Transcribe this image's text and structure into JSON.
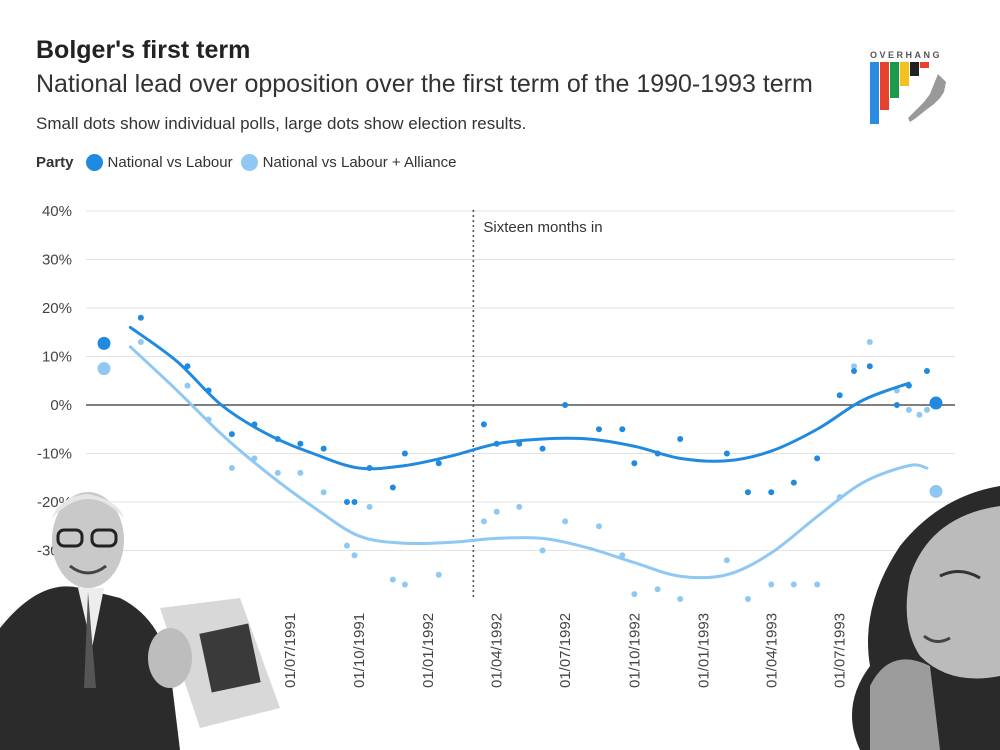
{
  "header": {
    "title": "Bolger's first term",
    "subtitle": "National lead over opposition over the first term of the 1990-1993 term",
    "note": "Small dots show individual polls, large dots show election results."
  },
  "legend": {
    "title": "Party",
    "items": [
      {
        "label": "National vs Labour",
        "color": "#1f8ae0"
      },
      {
        "label": "National vs Labour + Alliance",
        "color": "#8fc8f2"
      }
    ]
  },
  "logo": {
    "text": "OVERHANG"
  },
  "chart_data": {
    "type": "scatter",
    "ylim": [
      -40,
      40
    ],
    "yticks": [
      "40%",
      "30%",
      "20%",
      "10%",
      "0%",
      "-10%",
      "-20%",
      "-30%"
    ],
    "xlim": [
      "1990-10-27",
      "1993-11-06"
    ],
    "xticks": [
      "01/07/1991",
      "01/10/1991",
      "01/01/1992",
      "01/04/1992",
      "01/07/1992",
      "01/10/1992",
      "01/01/1993",
      "01/04/1993",
      "01/07/1993"
    ],
    "annotation": {
      "label": "Sixteen months in",
      "date": "1992-03-01"
    },
    "series": [
      {
        "name": "National vs Labour",
        "color": "#1f8ae0",
        "election_results": [
          {
            "date": "1990-10-27",
            "value": 12.7
          },
          {
            "date": "1993-11-06",
            "value": 0.4
          }
        ],
        "polls": [
          {
            "date": "1990-12-15",
            "value": 18
          },
          {
            "date": "1991-02-15",
            "value": 8
          },
          {
            "date": "1991-03-15",
            "value": 3
          },
          {
            "date": "1991-04-15",
            "value": -6
          },
          {
            "date": "1991-05-15",
            "value": -4
          },
          {
            "date": "1991-06-15",
            "value": -7
          },
          {
            "date": "1991-07-15",
            "value": -8
          },
          {
            "date": "1991-08-15",
            "value": -9
          },
          {
            "date": "1991-09-15",
            "value": -20
          },
          {
            "date": "1991-09-25",
            "value": -20
          },
          {
            "date": "1991-10-15",
            "value": -13
          },
          {
            "date": "1991-11-15",
            "value": -17
          },
          {
            "date": "1991-12-01",
            "value": -10
          },
          {
            "date": "1992-01-15",
            "value": -12
          },
          {
            "date": "1992-03-15",
            "value": -4
          },
          {
            "date": "1992-04-01",
            "value": -8
          },
          {
            "date": "1992-05-01",
            "value": -8
          },
          {
            "date": "1992-06-01",
            "value": -9
          },
          {
            "date": "1992-07-01",
            "value": 0
          },
          {
            "date": "1992-08-15",
            "value": -5
          },
          {
            "date": "1992-09-15",
            "value": -5
          },
          {
            "date": "1992-10-01",
            "value": -12
          },
          {
            "date": "1992-11-01",
            "value": -10
          },
          {
            "date": "1992-12-01",
            "value": -7
          },
          {
            "date": "1993-02-01",
            "value": -10
          },
          {
            "date": "1993-03-01",
            "value": -18
          },
          {
            "date": "1993-04-01",
            "value": -18
          },
          {
            "date": "1993-05-01",
            "value": -16
          },
          {
            "date": "1993-06-01",
            "value": -11
          },
          {
            "date": "1993-07-01",
            "value": 2
          },
          {
            "date": "1993-07-20",
            "value": 7
          },
          {
            "date": "1993-08-10",
            "value": 8
          },
          {
            "date": "1993-09-15",
            "value": 0
          },
          {
            "date": "1993-10-01",
            "value": 4
          },
          {
            "date": "1993-10-25",
            "value": 7
          }
        ],
        "trend": [
          {
            "date": "1990-12-01",
            "value": 16
          },
          {
            "date": "1991-02-01",
            "value": 9
          },
          {
            "date": "1991-04-01",
            "value": 0
          },
          {
            "date": "1991-06-01",
            "value": -6
          },
          {
            "date": "1991-08-01",
            "value": -10
          },
          {
            "date": "1991-10-01",
            "value": -13
          },
          {
            "date": "1991-12-01",
            "value": -12.5
          },
          {
            "date": "1992-02-01",
            "value": -10.5
          },
          {
            "date": "1992-04-01",
            "value": -8
          },
          {
            "date": "1992-06-01",
            "value": -7
          },
          {
            "date": "1992-08-01",
            "value": -7
          },
          {
            "date": "1992-10-01",
            "value": -8.5
          },
          {
            "date": "1992-12-01",
            "value": -11
          },
          {
            "date": "1993-02-01",
            "value": -11.5
          },
          {
            "date": "1993-04-01",
            "value": -9.5
          },
          {
            "date": "1993-06-01",
            "value": -5
          },
          {
            "date": "1993-08-01",
            "value": 1
          },
          {
            "date": "1993-10-01",
            "value": 4.5
          }
        ]
      },
      {
        "name": "National vs Labour + Alliance",
        "color": "#8fc8f2",
        "election_results": [
          {
            "date": "1990-10-27",
            "value": 7.5
          },
          {
            "date": "1993-11-06",
            "value": -17.8
          }
        ],
        "polls": [
          {
            "date": "1990-12-15",
            "value": 13
          },
          {
            "date": "1991-02-15",
            "value": 4
          },
          {
            "date": "1991-03-15",
            "value": -3
          },
          {
            "date": "1991-04-15",
            "value": -13
          },
          {
            "date": "1991-05-15",
            "value": -11
          },
          {
            "date": "1991-06-15",
            "value": -14
          },
          {
            "date": "1991-07-15",
            "value": -14
          },
          {
            "date": "1991-08-15",
            "value": -18
          },
          {
            "date": "1991-09-15",
            "value": -29
          },
          {
            "date": "1991-09-25",
            "value": -31
          },
          {
            "date": "1991-10-15",
            "value": -21
          },
          {
            "date": "1991-11-15",
            "value": -36
          },
          {
            "date": "1991-12-01",
            "value": -37
          },
          {
            "date": "1992-01-15",
            "value": -35
          },
          {
            "date": "1992-03-15",
            "value": -24
          },
          {
            "date": "1992-04-01",
            "value": -22
          },
          {
            "date": "1992-05-01",
            "value": -21
          },
          {
            "date": "1992-06-01",
            "value": -30
          },
          {
            "date": "1992-07-01",
            "value": -24
          },
          {
            "date": "1992-08-15",
            "value": -25
          },
          {
            "date": "1992-09-15",
            "value": -31
          },
          {
            "date": "1992-10-01",
            "value": -39
          },
          {
            "date": "1992-11-01",
            "value": -38
          },
          {
            "date": "1992-12-01",
            "value": -40
          },
          {
            "date": "1993-02-01",
            "value": -32
          },
          {
            "date": "1993-03-01",
            "value": -40
          },
          {
            "date": "1993-04-01",
            "value": -37
          },
          {
            "date": "1993-05-01",
            "value": -37
          },
          {
            "date": "1993-06-01",
            "value": -37
          },
          {
            "date": "1993-07-01",
            "value": -19
          },
          {
            "date": "1993-07-20",
            "value": 8
          },
          {
            "date": "1993-08-10",
            "value": 13
          },
          {
            "date": "1993-09-15",
            "value": 3
          },
          {
            "date": "1993-10-01",
            "value": -1
          },
          {
            "date": "1993-10-15",
            "value": -2
          },
          {
            "date": "1993-10-25",
            "value": -1
          }
        ],
        "trend": [
          {
            "date": "1990-12-01",
            "value": 12
          },
          {
            "date": "1991-02-01",
            "value": 3
          },
          {
            "date": "1991-04-01",
            "value": -6
          },
          {
            "date": "1991-06-01",
            "value": -14
          },
          {
            "date": "1991-08-01",
            "value": -21
          },
          {
            "date": "1991-10-01",
            "value": -27
          },
          {
            "date": "1991-12-01",
            "value": -28.5
          },
          {
            "date": "1992-02-01",
            "value": -28.3
          },
          {
            "date": "1992-04-01",
            "value": -27.5
          },
          {
            "date": "1992-06-01",
            "value": -27.5
          },
          {
            "date": "1992-08-01",
            "value": -29.5
          },
          {
            "date": "1992-10-01",
            "value": -32.5
          },
          {
            "date": "1992-12-01",
            "value": -35.3
          },
          {
            "date": "1993-02-01",
            "value": -35
          },
          {
            "date": "1993-04-01",
            "value": -30.5
          },
          {
            "date": "1993-06-01",
            "value": -23
          },
          {
            "date": "1993-08-01",
            "value": -16
          },
          {
            "date": "1993-10-01",
            "value": -12.5
          },
          {
            "date": "1993-10-25",
            "value": -13
          }
        ]
      }
    ]
  }
}
